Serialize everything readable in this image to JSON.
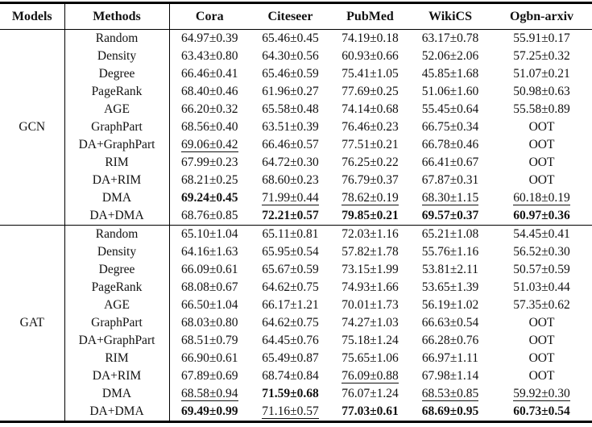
{
  "page": {
    "background_color": "#ffffff",
    "text_color": "#111111",
    "rule_color": "#000000"
  },
  "chart_data": {
    "type": "table",
    "title": "",
    "columns": [
      "Models",
      "Methods",
      "Cora",
      "Citeseer",
      "PubMed",
      "WikiCS",
      "Ogbn-arxiv"
    ],
    "value_style_legend": {
      "b": "bold-best",
      "u": "underlined-second-best",
      "": "regular"
    },
    "sections": [
      {
        "model": "GCN",
        "rows": [
          {
            "method": "Random",
            "values": [
              "64.97±0.39",
              "65.46±0.45",
              "74.19±0.18",
              "63.17±0.78",
              "55.91±0.17"
            ],
            "styles": [
              "",
              "",
              "",
              "",
              ""
            ]
          },
          {
            "method": "Density",
            "values": [
              "63.43±0.80",
              "64.30±0.56",
              "60.93±0.66",
              "52.06±2.06",
              "57.25±0.32"
            ],
            "styles": [
              "",
              "",
              "",
              "",
              ""
            ]
          },
          {
            "method": "Degree",
            "values": [
              "66.46±0.41",
              "65.46±0.59",
              "75.41±1.05",
              "45.85±1.68",
              "51.07±0.21"
            ],
            "styles": [
              "",
              "",
              "",
              "",
              ""
            ]
          },
          {
            "method": "PageRank",
            "values": [
              "68.40±0.46",
              "61.96±0.27",
              "77.69±0.25",
              "51.06±1.60",
              "50.98±0.63"
            ],
            "styles": [
              "",
              "",
              "",
              "",
              ""
            ]
          },
          {
            "method": "AGE",
            "values": [
              "66.20±0.32",
              "65.58±0.48",
              "74.14±0.68",
              "55.45±0.64",
              "55.58±0.89"
            ],
            "styles": [
              "",
              "",
              "",
              "",
              ""
            ]
          },
          {
            "method": "GraphPart",
            "values": [
              "68.56±0.40",
              "63.51±0.39",
              "76.46±0.23",
              "66.75±0.34",
              "OOT"
            ],
            "styles": [
              "",
              "",
              "",
              "",
              ""
            ]
          },
          {
            "method": "DA+GraphPart",
            "values": [
              "69.06±0.42",
              "66.46±0.57",
              "77.51±0.21",
              "66.78±0.46",
              "OOT"
            ],
            "styles": [
              "u",
              "",
              "",
              "",
              ""
            ]
          },
          {
            "method": "RIM",
            "values": [
              "67.99±0.23",
              "64.72±0.30",
              "76.25±0.22",
              "66.41±0.67",
              "OOT"
            ],
            "styles": [
              "",
              "",
              "",
              "",
              ""
            ]
          },
          {
            "method": "DA+RIM",
            "values": [
              "68.21±0.25",
              "68.60±0.23",
              "76.79±0.37",
              "67.87±0.31",
              "OOT"
            ],
            "styles": [
              "",
              "",
              "",
              "",
              ""
            ]
          },
          {
            "method": "DMA",
            "values": [
              "69.24±0.45",
              "71.99±0.44",
              "78.62±0.19",
              "68.30±1.15",
              "60.18±0.19"
            ],
            "styles": [
              "b",
              "u",
              "u",
              "u",
              "u"
            ]
          },
          {
            "method": "DA+DMA",
            "values": [
              "68.76±0.85",
              "72.21±0.57",
              "79.85±0.21",
              "69.57±0.37",
              "60.97±0.36"
            ],
            "styles": [
              "",
              "b",
              "b",
              "b",
              "b"
            ]
          }
        ]
      },
      {
        "model": "GAT",
        "rows": [
          {
            "method": "Random",
            "values": [
              "65.10±1.04",
              "65.11±0.81",
              "72.03±1.16",
              "65.21±1.08",
              "54.45±0.41"
            ],
            "styles": [
              "",
              "",
              "",
              "",
              ""
            ]
          },
          {
            "method": "Density",
            "values": [
              "64.16±1.63",
              "65.95±0.54",
              "57.82±1.78",
              "55.76±1.16",
              "56.52±0.30"
            ],
            "styles": [
              "",
              "",
              "",
              "",
              ""
            ]
          },
          {
            "method": "Degree",
            "values": [
              "66.09±0.61",
              "65.67±0.59",
              "73.15±1.99",
              "53.81±2.11",
              "50.57±0.59"
            ],
            "styles": [
              "",
              "",
              "",
              "",
              ""
            ]
          },
          {
            "method": "PageRank",
            "values": [
              "68.08±0.67",
              "64.62±0.75",
              "74.93±1.66",
              "53.65±1.39",
              "51.03±0.44"
            ],
            "styles": [
              "",
              "",
              "",
              "",
              ""
            ]
          },
          {
            "method": "AGE",
            "values": [
              "66.50±1.04",
              "66.17±1.21",
              "70.01±1.73",
              "56.19±1.02",
              "57.35±0.62"
            ],
            "styles": [
              "",
              "",
              "",
              "",
              ""
            ]
          },
          {
            "method": "GraphPart",
            "values": [
              "68.03±0.80",
              "64.62±0.75",
              "74.27±1.03",
              "66.63±0.54",
              "OOT"
            ],
            "styles": [
              "",
              "",
              "",
              "",
              ""
            ]
          },
          {
            "method": "DA+GraphPart",
            "values": [
              "68.51±0.79",
              "64.45±0.76",
              "75.18±1.24",
              "66.28±0.76",
              "OOT"
            ],
            "styles": [
              "",
              "",
              "",
              "",
              ""
            ]
          },
          {
            "method": "RIM",
            "values": [
              "66.90±0.61",
              "65.49±0.87",
              "75.65±1.06",
              "66.97±1.11",
              "OOT"
            ],
            "styles": [
              "",
              "",
              "",
              "",
              ""
            ]
          },
          {
            "method": "DA+RIM",
            "values": [
              "67.89±0.69",
              "68.74±0.84",
              "76.09±0.88",
              "67.98±1.14",
              "OOT"
            ],
            "styles": [
              "",
              "",
              "u",
              "",
              ""
            ]
          },
          {
            "method": "DMA",
            "values": [
              "68.58±0.94",
              "71.59±0.68",
              "76.07±1.24",
              "68.53±0.85",
              "59.92±0.30"
            ],
            "styles": [
              "u",
              "b",
              "",
              "u",
              "u"
            ]
          },
          {
            "method": "DA+DMA",
            "values": [
              "69.49±0.99",
              "71.16±0.57",
              "77.03±0.61",
              "68.69±0.95",
              "60.73±0.54"
            ],
            "styles": [
              "b",
              "u",
              "b",
              "b",
              "b"
            ]
          }
        ]
      }
    ]
  }
}
